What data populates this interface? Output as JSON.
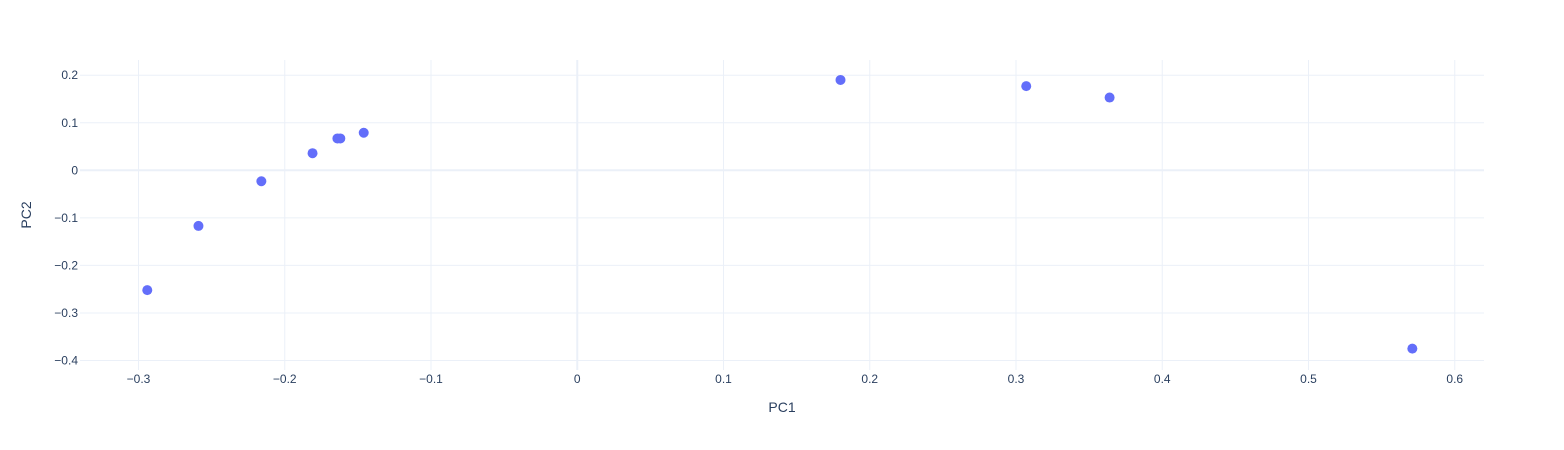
{
  "chart_data": {
    "type": "scatter",
    "title": "",
    "xlabel": "PC1",
    "ylabel": "PC2",
    "xlim": [
      -0.34,
      0.62
    ],
    "ylim": [
      -0.42,
      0.232
    ],
    "xticks": [
      -0.3,
      -0.2,
      -0.1,
      0,
      0.1,
      0.2,
      0.3,
      0.4,
      0.5,
      0.6
    ],
    "xtick_labels": [
      "−0.3",
      "−0.2",
      "−0.1",
      "0",
      "0.1",
      "0.2",
      "0.3",
      "0.4",
      "0.5",
      "0.6"
    ],
    "yticks": [
      0.2,
      0.1,
      0,
      -0.1,
      -0.2,
      -0.3,
      -0.4
    ],
    "ytick_labels": [
      "0.2",
      "0.1",
      "0",
      "−0.1",
      "−0.2",
      "−0.3",
      "−0.4"
    ],
    "grid": true,
    "marker_color": "#636efa",
    "series": [
      {
        "x": [
          -0.294,
          -0.259,
          -0.216,
          -0.181,
          -0.164,
          -0.162,
          -0.146,
          0.18,
          0.307,
          0.364,
          0.571
        ],
        "y": [
          -0.252,
          -0.117,
          -0.023,
          0.036,
          0.067,
          0.067,
          0.079,
          0.19,
          0.177,
          0.153,
          -0.375
        ]
      }
    ]
  }
}
